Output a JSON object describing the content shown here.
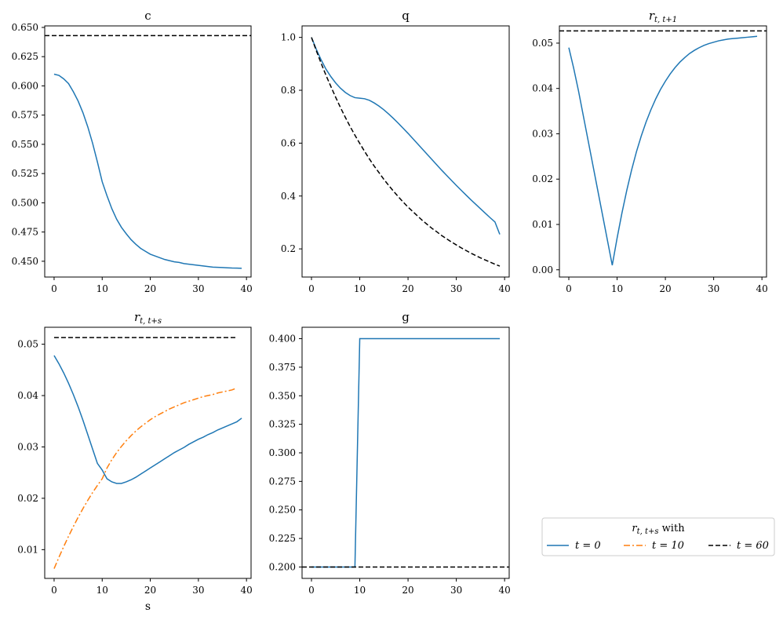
{
  "colors": {
    "blue": "#1f77b4",
    "orange": "#ff7f0e",
    "black": "#000000"
  },
  "legend": {
    "title_main": "r",
    "title_sub": "t, t+s",
    "title_suffix": " with",
    "entries": [
      {
        "label": "t = 0",
        "color": "#1f77b4",
        "dash": "solid"
      },
      {
        "label": "t = 10",
        "color": "#ff7f0e",
        "dash": "dashdot"
      },
      {
        "label": "t = 60",
        "color": "#000000",
        "dash": "dashed"
      }
    ]
  },
  "chart_data": [
    {
      "id": "c",
      "type": "line",
      "title": "c",
      "xlim": [
        -1.95,
        40.95
      ],
      "ylim": [
        0.4365,
        0.6513
      ],
      "xticks": [
        0,
        10,
        20,
        30,
        40
      ],
      "yticks": [
        0.45,
        0.475,
        0.5,
        0.525,
        0.55,
        0.575,
        0.6,
        0.625,
        0.65
      ],
      "ytick_labels": [
        "0.450",
        "0.475",
        "0.500",
        "0.525",
        "0.550",
        "0.575",
        "0.600",
        "0.625",
        "0.650"
      ],
      "series": [
        {
          "color": "#1f77b4",
          "dash": "solid",
          "x": [
            0,
            1,
            2,
            3,
            4,
            5,
            6,
            7,
            8,
            9,
            10,
            11,
            12,
            13,
            14,
            15,
            16,
            17,
            18,
            19,
            20,
            21,
            22,
            23,
            24,
            25,
            26,
            27,
            28,
            29,
            30,
            31,
            32,
            33,
            34,
            35,
            36,
            37,
            38,
            39
          ],
          "y": [
            0.61,
            0.609,
            0.606,
            0.602,
            0.595,
            0.587,
            0.577,
            0.565,
            0.551,
            0.535,
            0.518,
            0.506,
            0.495,
            0.486,
            0.479,
            0.4735,
            0.4685,
            0.4645,
            0.461,
            0.4585,
            0.456,
            0.4545,
            0.453,
            0.4515,
            0.4505,
            0.4495,
            0.449,
            0.448,
            0.4475,
            0.447,
            0.4465,
            0.446,
            0.4455,
            0.445,
            0.4448,
            0.4446,
            0.4444,
            0.4442,
            0.4441,
            0.444
          ]
        },
        {
          "color": "#000000",
          "dash": "dashed",
          "x": [
            -1.95,
            40.95
          ],
          "y": [
            0.643,
            0.643
          ]
        }
      ]
    },
    {
      "id": "q",
      "type": "line",
      "title": "q",
      "xlim": [
        -1.95,
        40.95
      ],
      "ylim": [
        0.0935,
        1.0435
      ],
      "xticks": [
        0,
        10,
        20,
        30,
        40
      ],
      "yticks": [
        0.2,
        0.4,
        0.6,
        0.8,
        1.0
      ],
      "ytick_labels": [
        "0.2",
        "0.4",
        "0.6",
        "0.8",
        "1.0"
      ],
      "series": [
        {
          "color": "#1f77b4",
          "dash": "solid",
          "x": [
            0,
            1,
            2,
            3,
            4,
            5,
            6,
            7,
            8,
            9,
            10,
            11,
            12,
            13,
            14,
            15,
            16,
            17,
            18,
            19,
            20,
            21,
            22,
            23,
            24,
            25,
            26,
            27,
            28,
            29,
            30,
            31,
            32,
            33,
            34,
            35,
            36,
            37,
            38,
            39
          ],
          "y": [
            1.0,
            0.955,
            0.915,
            0.88,
            0.852,
            0.828,
            0.808,
            0.792,
            0.78,
            0.772,
            0.77,
            0.768,
            0.762,
            0.752,
            0.74,
            0.726,
            0.71,
            0.693,
            0.675,
            0.656,
            0.637,
            0.617,
            0.597,
            0.577,
            0.557,
            0.537,
            0.517,
            0.497,
            0.478,
            0.459,
            0.44,
            0.422,
            0.404,
            0.386,
            0.369,
            0.352,
            0.335,
            0.318,
            0.302,
            0.255
          ]
        },
        {
          "color": "#000000",
          "dash": "dashed",
          "x": [
            0,
            1,
            2,
            3,
            4,
            5,
            6,
            7,
            8,
            9,
            10,
            11,
            12,
            13,
            14,
            15,
            16,
            17,
            18,
            19,
            20,
            21,
            22,
            23,
            24,
            25,
            26,
            27,
            28,
            29,
            30,
            31,
            32,
            33,
            34,
            35,
            36,
            37,
            38,
            39
          ],
          "y": [
            1.0,
            0.95,
            0.902,
            0.857,
            0.815,
            0.774,
            0.735,
            0.698,
            0.663,
            0.63,
            0.599,
            0.569,
            0.54,
            0.513,
            0.488,
            0.463,
            0.44,
            0.418,
            0.397,
            0.377,
            0.358,
            0.341,
            0.324,
            0.307,
            0.292,
            0.277,
            0.264,
            0.25,
            0.238,
            0.226,
            0.215,
            0.204,
            0.194,
            0.184,
            0.175,
            0.166,
            0.158,
            0.15,
            0.142,
            0.135
          ]
        }
      ]
    },
    {
      "id": "r1",
      "type": "line",
      "title": "r",
      "title_sub": "t, t+1",
      "xlim": [
        -1.95,
        40.95
      ],
      "ylim": [
        -0.0016,
        0.0538
      ],
      "xticks": [
        0,
        10,
        20,
        30,
        40
      ],
      "yticks": [
        0.0,
        0.01,
        0.02,
        0.03,
        0.04,
        0.05
      ],
      "ytick_labels": [
        "0.00",
        "0.01",
        "0.02",
        "0.03",
        "0.04",
        "0.05"
      ],
      "series": [
        {
          "color": "#1f77b4",
          "dash": "solid",
          "x": [
            0,
            1,
            2,
            3,
            4,
            5,
            6,
            7,
            8,
            9,
            10,
            11,
            12,
            13,
            14,
            15,
            16,
            17,
            18,
            19,
            20,
            21,
            22,
            23,
            24,
            25,
            26,
            27,
            28,
            29,
            30,
            31,
            32,
            33,
            34,
            35,
            36,
            37,
            38,
            39
          ],
          "y": [
            0.049,
            0.0445,
            0.0395,
            0.034,
            0.0285,
            0.023,
            0.0175,
            0.012,
            0.0065,
            0.001,
            0.007,
            0.0125,
            0.0175,
            0.022,
            0.026,
            0.0295,
            0.0326,
            0.0353,
            0.0377,
            0.0398,
            0.0416,
            0.0432,
            0.0446,
            0.0458,
            0.0468,
            0.0477,
            0.0484,
            0.049,
            0.0495,
            0.0499,
            0.0502,
            0.0505,
            0.0507,
            0.0509,
            0.051,
            0.0511,
            0.0512,
            0.0513,
            0.0514,
            0.0515
          ]
        },
        {
          "color": "#000000",
          "dash": "dashed",
          "x": [
            -1.95,
            40.95
          ],
          "y": [
            0.0527,
            0.0527
          ]
        }
      ]
    },
    {
      "id": "rs",
      "type": "line",
      "title": "r",
      "title_sub": "t, t+s",
      "xlabel": "s",
      "xlim": [
        -1.95,
        40.95
      ],
      "ylim": [
        0.0044,
        0.0533
      ],
      "xticks": [
        0,
        10,
        20,
        30,
        40
      ],
      "yticks": [
        0.01,
        0.02,
        0.03,
        0.04,
        0.05
      ],
      "ytick_labels": [
        "0.01",
        "0.02",
        "0.03",
        "0.04",
        "0.05"
      ],
      "series": [
        {
          "name": "t = 0",
          "color": "#1f77b4",
          "dash": "solid",
          "x": [
            0,
            1,
            2,
            3,
            4,
            5,
            6,
            7,
            8,
            9,
            10,
            11,
            12,
            13,
            14,
            15,
            16,
            17,
            18,
            19,
            20,
            21,
            22,
            23,
            24,
            25,
            26,
            27,
            28,
            29,
            30,
            31,
            32,
            33,
            34,
            35,
            36,
            37,
            38,
            39
          ],
          "y": [
            0.0478,
            0.0462,
            0.0444,
            0.0424,
            0.0402,
            0.0378,
            0.0352,
            0.0324,
            0.0296,
            0.0268,
            0.0255,
            0.0238,
            0.0232,
            0.0229,
            0.0229,
            0.0232,
            0.0236,
            0.0241,
            0.0247,
            0.0253,
            0.0259,
            0.0265,
            0.0271,
            0.0277,
            0.0283,
            0.0289,
            0.0294,
            0.0299,
            0.0305,
            0.031,
            0.0315,
            0.0319,
            0.0324,
            0.0328,
            0.0333,
            0.0337,
            0.0341,
            0.0345,
            0.0349,
            0.0356
          ]
        },
        {
          "name": "t = 10",
          "color": "#ff7f0e",
          "dash": "dashdot",
          "x": [
            0,
            1,
            2,
            3,
            4,
            5,
            6,
            7,
            8,
            9,
            10,
            11,
            12,
            13,
            14,
            15,
            16,
            17,
            18,
            19,
            20,
            21,
            22,
            23,
            24,
            25,
            26,
            27,
            28,
            29,
            30,
            31,
            32,
            33,
            34,
            35,
            36,
            37,
            38
          ],
          "y": [
            0.0063,
            0.0085,
            0.0106,
            0.0126,
            0.0145,
            0.0163,
            0.018,
            0.0196,
            0.0211,
            0.0225,
            0.0238,
            0.0259,
            0.0275,
            0.0289,
            0.0301,
            0.0312,
            0.0322,
            0.0331,
            0.0339,
            0.0346,
            0.0353,
            0.0359,
            0.0364,
            0.0369,
            0.0374,
            0.0378,
            0.0382,
            0.0386,
            0.0389,
            0.0392,
            0.0395,
            0.0398,
            0.04,
            0.0402,
            0.0405,
            0.0407,
            0.0409,
            0.0411,
            0.0415
          ]
        },
        {
          "name": "t = 60",
          "color": "#000000",
          "dash": "dashed",
          "x": [
            0,
            38
          ],
          "y": [
            0.0513,
            0.0513
          ]
        }
      ]
    },
    {
      "id": "g",
      "type": "line",
      "title": "g",
      "xlim": [
        -1.95,
        40.95
      ],
      "ylim": [
        0.19,
        0.41
      ],
      "xticks": [
        0,
        10,
        20,
        30,
        40
      ],
      "yticks": [
        0.2,
        0.225,
        0.25,
        0.275,
        0.3,
        0.325,
        0.35,
        0.375,
        0.4
      ],
      "ytick_labels": [
        "0.200",
        "0.225",
        "0.250",
        "0.275",
        "0.300",
        "0.325",
        "0.350",
        "0.375",
        "0.400"
      ],
      "series": [
        {
          "color": "#1f77b4",
          "dash": "solid",
          "x": [
            0,
            9,
            10,
            39
          ],
          "y": [
            0.2,
            0.2,
            0.4,
            0.4
          ]
        },
        {
          "color": "#000000",
          "dash": "dashed",
          "x": [
            -1.95,
            40.95
          ],
          "y": [
            0.2,
            0.2
          ]
        }
      ]
    }
  ]
}
